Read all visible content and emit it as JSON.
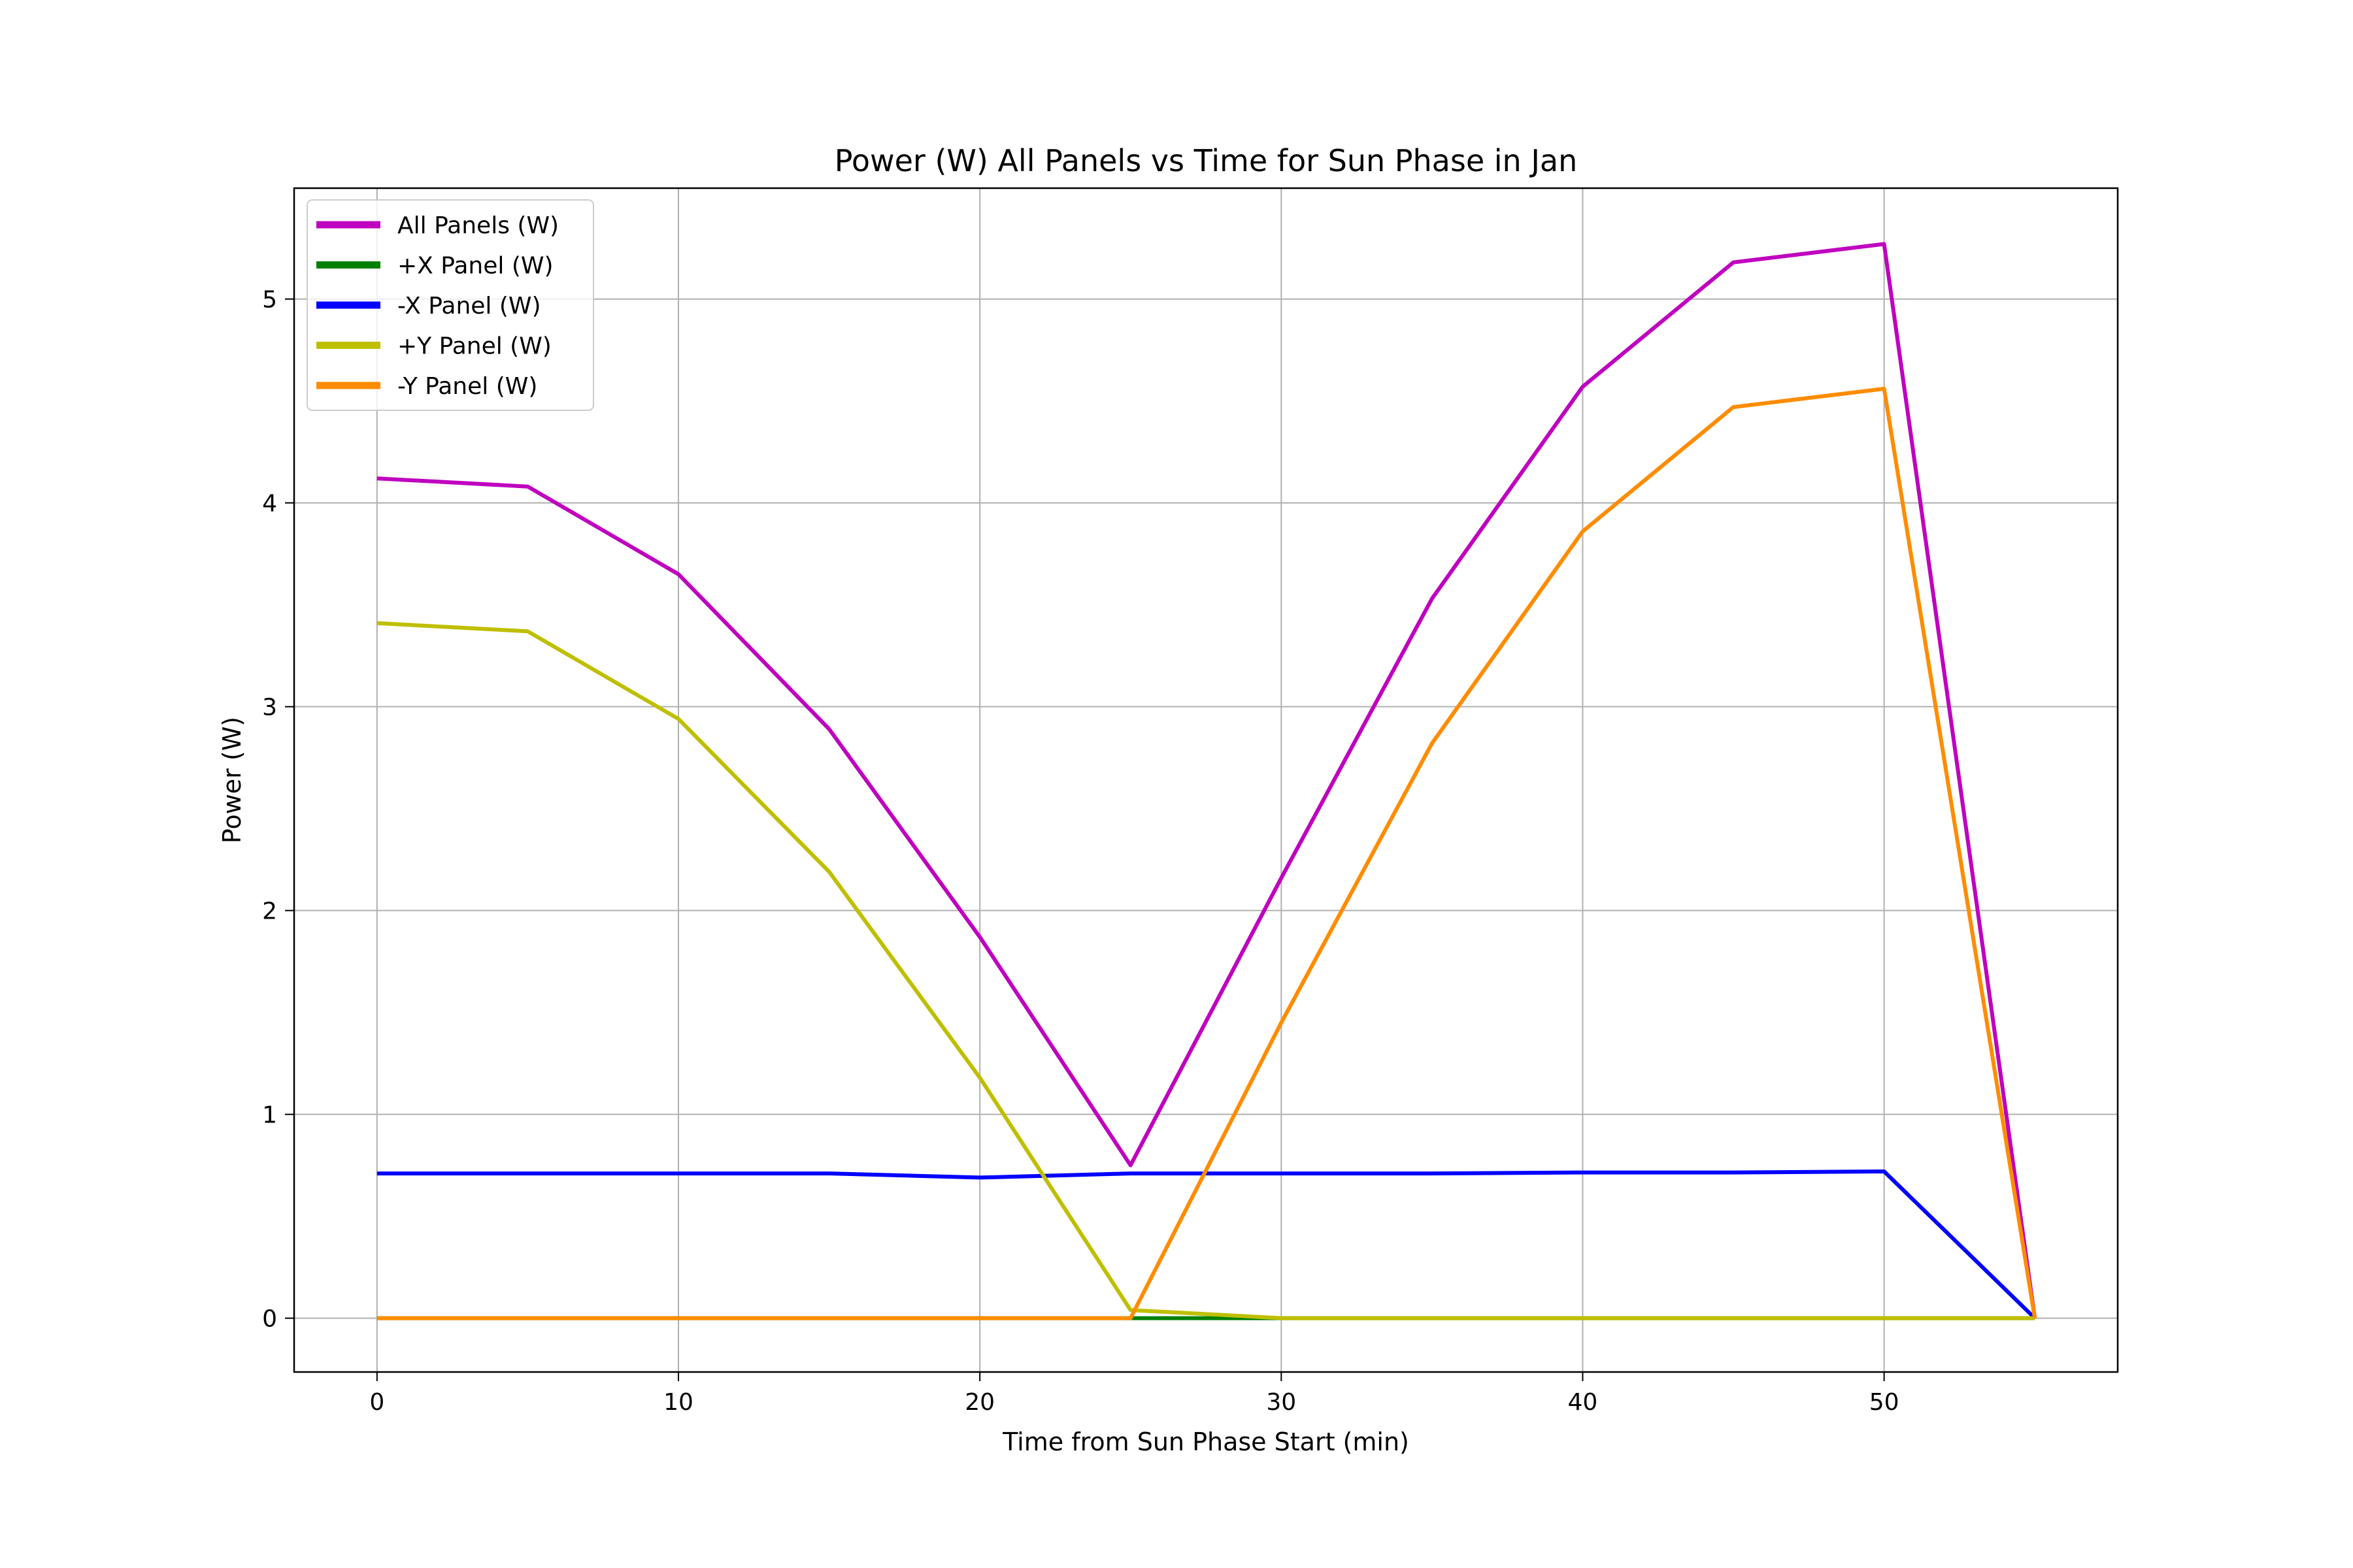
{
  "chart_data": {
    "type": "line",
    "title": "Power (W) All Panels vs Time for Sun Phase in Jan",
    "xlabel": "Time from Sun Phase Start (min)",
    "ylabel": "Power (W)",
    "xlim": [
      -2.75,
      57.75
    ],
    "ylim": [
      -0.264,
      5.544
    ],
    "x_ticks": [
      0,
      10,
      20,
      30,
      40,
      50
    ],
    "y_ticks": [
      0,
      1,
      2,
      3,
      4,
      5
    ],
    "grid": true,
    "legend_position": "top-left",
    "x": [
      0,
      5,
      10,
      15,
      20,
      25,
      30,
      35,
      40,
      45,
      50,
      55
    ],
    "series": [
      {
        "name": "All Panels (W)",
        "color": "#bf00bf",
        "values": [
          4.12,
          4.08,
          3.65,
          2.89,
          1.87,
          0.75,
          2.16,
          3.53,
          4.57,
          5.18,
          5.27,
          0.0
        ]
      },
      {
        "name": "+X Panel (W)",
        "color": "#008000",
        "values": [
          0,
          0,
          0,
          0,
          0,
          0,
          0,
          0,
          0,
          0,
          0,
          0
        ]
      },
      {
        "name": "-X Panel (W)",
        "color": "#0000ff",
        "values": [
          0.71,
          0.71,
          0.71,
          0.71,
          0.69,
          0.71,
          0.71,
          0.71,
          0.715,
          0.715,
          0.72,
          0.0
        ]
      },
      {
        "name": "+Y Panel (W)",
        "color": "#bfbf00",
        "values": [
          3.41,
          3.37,
          2.94,
          2.19,
          1.18,
          0.04,
          0,
          0,
          0,
          0,
          0,
          0
        ]
      },
      {
        "name": "-Y Panel (W)",
        "color": "#ff8c00",
        "values": [
          0,
          0,
          0,
          0,
          0,
          0,
          1.45,
          2.82,
          3.86,
          4.47,
          4.56,
          0.0
        ]
      }
    ]
  }
}
